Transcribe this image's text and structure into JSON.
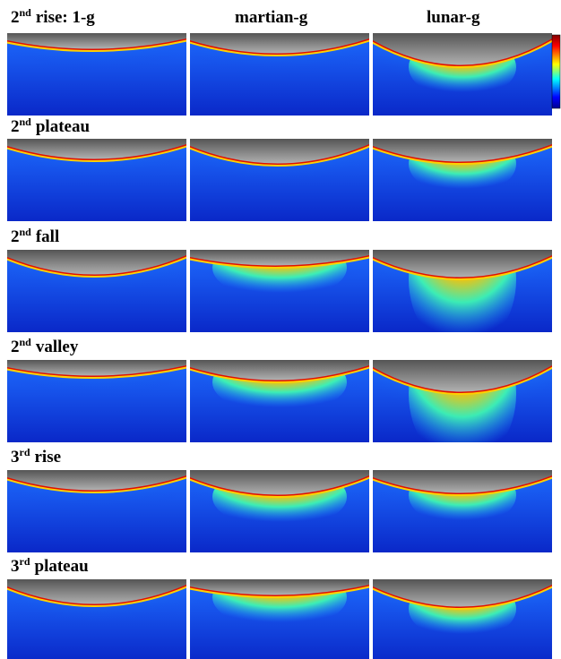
{
  "columns": [
    "martian-g",
    "lunar-g"
  ],
  "rows": [
    {
      "number": "2",
      "suffix": "nd",
      "label": "rise: 1-g"
    },
    {
      "number": "2",
      "suffix": "nd",
      "label": "plateau"
    },
    {
      "number": "2",
      "suffix": "nd",
      "label": "fall"
    },
    {
      "number": "2",
      "suffix": "nd",
      "label": "valley"
    },
    {
      "number": "3",
      "suffix": "rd",
      "label": "rise"
    },
    {
      "number": "3",
      "suffix": "rd",
      "label": "plateau"
    }
  ]
}
